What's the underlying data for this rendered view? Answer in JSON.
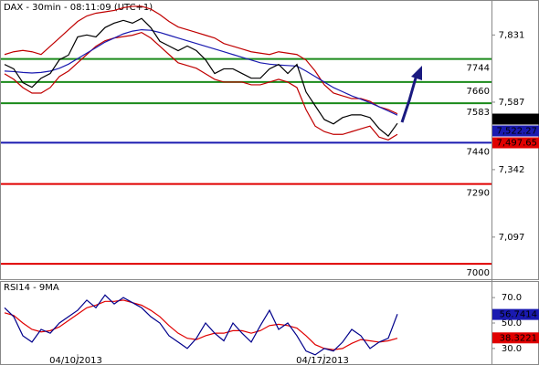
{
  "chart_data": [
    {
      "type": "line",
      "title": "DAX - 30min - 08:11:09 (UTC+1)",
      "ylim": [
        6944,
        7958
      ],
      "yticks": [
        {
          "value": 7831,
          "label": "7,831"
        },
        {
          "value": 7587,
          "label": "7,587"
        },
        {
          "value": 7342,
          "label": "7,342"
        },
        {
          "value": 7097,
          "label": "7,097"
        }
      ],
      "levels": [
        {
          "value": 7744,
          "color": "#1a8a1a"
        },
        {
          "value": 7660,
          "color": "#1a8a1a"
        },
        {
          "value": 7583,
          "color": "#1a8a1a"
        },
        {
          "value": 7440,
          "color": "#1a1ab0"
        },
        {
          "value": 7290,
          "color": "#e00000"
        },
        {
          "value": 7000,
          "color": "#e00000"
        }
      ],
      "last_labels": [
        {
          "value": 7525.5,
          "label": "7,525.5",
          "color": "#000000"
        },
        {
          "value": 7522.27,
          "label": "7,522.27",
          "color": "#1a1ab0"
        },
        {
          "value": 7497.65,
          "label": "7,497.65",
          "color": "#e00000"
        }
      ],
      "series": [
        {
          "color": "#c00000",
          "values": [
            7760,
            7770,
            7775,
            7770,
            7760,
            7790,
            7820,
            7850,
            7880,
            7900,
            7910,
            7915,
            7920,
            7930,
            7935,
            7935,
            7925,
            7905,
            7880,
            7860,
            7850,
            7840,
            7830,
            7820,
            7800,
            7790,
            7780,
            7770,
            7765,
            7760,
            7770,
            7765,
            7760,
            7740,
            7700,
            7650,
            7620,
            7610,
            7600,
            7600,
            7590,
            7570,
            7560,
            7545
          ]
        },
        {
          "color": "#c00000",
          "values": [
            7690,
            7670,
            7640,
            7620,
            7620,
            7640,
            7680,
            7700,
            7730,
            7760,
            7790,
            7810,
            7820,
            7825,
            7830,
            7840,
            7820,
            7790,
            7760,
            7730,
            7720,
            7710,
            7690,
            7670,
            7660,
            7660,
            7660,
            7650,
            7650,
            7660,
            7670,
            7660,
            7640,
            7560,
            7500,
            7480,
            7470,
            7470,
            7480,
            7490,
            7500,
            7460,
            7450,
            7470
          ]
        },
        {
          "color": "#1a1ab0",
          "values": [
            7700,
            7698,
            7695,
            7693,
            7695,
            7700,
            7710,
            7725,
            7745,
            7765,
            7785,
            7805,
            7820,
            7835,
            7845,
            7850,
            7848,
            7840,
            7830,
            7820,
            7810,
            7800,
            7790,
            7780,
            7770,
            7760,
            7750,
            7740,
            7730,
            7725,
            7722,
            7720,
            7718,
            7700,
            7680,
            7660,
            7640,
            7625,
            7610,
            7598,
            7585,
            7570,
            7555,
            7540
          ]
        },
        {
          "color": "#000000",
          "values": [
            7724,
            7708,
            7658,
            7641,
            7674,
            7691,
            7741,
            7758,
            7824,
            7831,
            7824,
            7858,
            7874,
            7884,
            7874,
            7891,
            7858,
            7808,
            7791,
            7774,
            7791,
            7774,
            7741,
            7691,
            7708,
            7708,
            7691,
            7674,
            7674,
            7708,
            7724,
            7691,
            7724,
            7624,
            7574,
            7524,
            7508,
            7531,
            7541,
            7541,
            7531,
            7491,
            7464,
            7510
          ]
        }
      ]
    },
    {
      "type": "line",
      "title": "RSI14 - 9MA",
      "ylim": [
        17,
        83
      ],
      "yticks": [
        {
          "value": 70,
          "label": "70.0"
        },
        {
          "value": 50,
          "label": "50.0"
        },
        {
          "value": 30,
          "label": "30.0"
        }
      ],
      "categories": [
        null,
        null,
        null,
        null,
        null,
        null,
        null,
        null,
        "04/10/2013",
        null,
        null,
        null,
        null,
        null,
        null,
        null,
        null,
        null,
        null,
        null,
        null,
        null,
        null,
        null,
        null,
        null,
        null,
        null,
        null,
        null,
        null,
        null,
        null,
        null,
        null,
        "04/17/2013",
        null,
        null,
        null,
        null,
        null,
        null,
        null,
        null
      ],
      "last_labels": [
        {
          "value": 56.7414,
          "label": "56.7414",
          "color": "#1a1ab0"
        },
        {
          "value": 38.3221,
          "label": "38.3221",
          "color": "#e00000"
        }
      ],
      "series": [
        {
          "color": "#e00000",
          "values": [
            58,
            56,
            50,
            45,
            43,
            44,
            47,
            52,
            57,
            62,
            64,
            67,
            67,
            68,
            66,
            64,
            60,
            55,
            48,
            42,
            38,
            37,
            40,
            42,
            42,
            44,
            44,
            42,
            44,
            48,
            49,
            48,
            46,
            40,
            33,
            30,
            29,
            30,
            34,
            37,
            36,
            35,
            36,
            38
          ]
        },
        {
          "color": "#00008b",
          "values": [
            62,
            55,
            40,
            35,
            45,
            42,
            50,
            55,
            60,
            68,
            62,
            72,
            65,
            70,
            66,
            62,
            55,
            50,
            40,
            35,
            30,
            38,
            50,
            42,
            36,
            50,
            42,
            35,
            48,
            60,
            45,
            50,
            40,
            28,
            25,
            30,
            28,
            35,
            45,
            40,
            30,
            35,
            38,
            57
          ]
        }
      ]
    }
  ]
}
